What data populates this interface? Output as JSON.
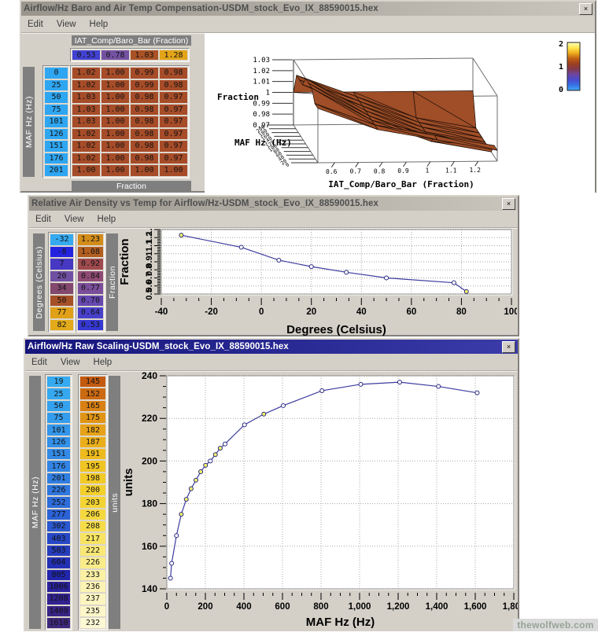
{
  "icons": {
    "close": "×"
  },
  "page": {
    "watermark": "thewolfweb.com"
  },
  "windows": {
    "baro": {
      "title": "Airflow/Hz Baro and Air Temp Compensation-USDM_stock_Evo_IX_88590015.hex",
      "menu": [
        "Edit",
        "View",
        "Help"
      ],
      "table": {
        "col_axis_label": "IAT_Comp/Baro_Bar (Fraction)",
        "row_axis_label": "MAF Hz (Hz)",
        "value_axis_label": "Fraction",
        "col_headers": [
          "0.53",
          "0.78",
          "1.03",
          "1.28"
        ],
        "col_header_colors": [
          "#4242d2",
          "#7452a2",
          "#aa5226",
          "#e2a418"
        ],
        "row_headers": [
          "0",
          "25",
          "50",
          "75",
          "101",
          "126",
          "151",
          "176",
          "201"
        ],
        "row_header_color": "#2ea6f2",
        "cell_color": "#a64c28",
        "cells": [
          [
            "1.02",
            "1.00",
            "0.99",
            "0.98"
          ],
          [
            "1.02",
            "1.00",
            "0.99",
            "0.98"
          ],
          [
            "1.03",
            "1.00",
            "0.98",
            "0.97"
          ],
          [
            "1.03",
            "1.00",
            "0.98",
            "0.97"
          ],
          [
            "1.03",
            "1.00",
            "0.98",
            "0.97"
          ],
          [
            "1.02",
            "1.00",
            "0.98",
            "0.97"
          ],
          [
            "1.02",
            "1.00",
            "0.98",
            "0.97"
          ],
          [
            "1.02",
            "1.00",
            "0.98",
            "0.97"
          ],
          [
            "1.00",
            "1.00",
            "1.00",
            "1.00"
          ]
        ]
      }
    },
    "density": {
      "title": "Relative Air Density vs Temp for Airflow/Hz-USDM_stock_Evo_IX_88590015.hex",
      "menu": [
        "Edit",
        "View",
        "Help"
      ],
      "table": {
        "col1_label": "Degrees (Celsius)",
        "col2_label": "Fraction",
        "col1_values": [
          "-32",
          "-8",
          "7",
          "20",
          "34",
          "50",
          "77",
          "82"
        ],
        "col1_colors": [
          "#35aaf0",
          "#2424e0",
          "#4638c2",
          "#7050a2",
          "#82486e",
          "#a65028",
          "#e0a018",
          "#e2aa1a"
        ],
        "col2_values": [
          "1.23",
          "1.08",
          "0.92",
          "0.84",
          "0.77",
          "0.70",
          "0.64",
          "0.53"
        ],
        "col2_colors": [
          "#d28c1a",
          "#b25e20",
          "#9e4a4e",
          "#8e4a74",
          "#7a4e9a",
          "#6648b0",
          "#4840ca",
          "#3638d2"
        ]
      }
    },
    "raw": {
      "title": "Airflow/Hz Raw Scaling-USDM_stock_Evo_IX_88590015.hex",
      "menu": [
        "Edit",
        "View",
        "Help"
      ],
      "table": {
        "col1_label": "MAF Hz (Hz)",
        "col2_label": "units",
        "col1_values": [
          "19",
          "25",
          "50",
          "75",
          "101",
          "126",
          "151",
          "176",
          "201",
          "226",
          "252",
          "277",
          "302",
          "403",
          "503",
          "604",
          "805",
          "1006",
          "1208",
          "1409",
          "1610"
        ],
        "col1_colors": [
          "#35aaf0",
          "#35a8f0",
          "#34a2ee",
          "#349cec",
          "#3396ea",
          "#3290e8",
          "#328ae6",
          "#3184e4",
          "#307ee2",
          "#2f76de",
          "#2d6cda",
          "#2b62d6",
          "#2a58d0",
          "#2748c6",
          "#253cbc",
          "#2330b4",
          "#2126ac",
          "#2a229c",
          "#322290",
          "#382486",
          "#3e287c"
        ],
        "col2_values": [
          "145",
          "152",
          "165",
          "175",
          "182",
          "187",
          "191",
          "195",
          "198",
          "200",
          "203",
          "206",
          "208",
          "217",
          "222",
          "226",
          "233",
          "236",
          "237",
          "235",
          "232"
        ],
        "col2_colors": [
          "#c25a10",
          "#cc6a12",
          "#d88014",
          "#e09416",
          "#e6a218",
          "#eaae1a",
          "#eeba1e",
          "#f0c422",
          "#f2ca26",
          "#f3d02c",
          "#f4d434",
          "#f5d83e",
          "#f6dc48",
          "#f8e462",
          "#f9e876",
          "#faec8a",
          "#fbf0a4",
          "#fcf3b4",
          "#fcf5c0",
          "#fdf6c8",
          "#fdf8d4"
        ]
      }
    }
  },
  "chart_data": [
    {
      "type": "surface",
      "xlabel": "IAT_Comp/Baro_Bar (Fraction)",
      "ylabel": "MAF Hz (Hz)",
      "zlabel": "Fraction",
      "x": [
        0.53,
        0.78,
        1.03,
        1.28
      ],
      "y": [
        0,
        25,
        50,
        75,
        101,
        126,
        151,
        176,
        201
      ],
      "z": [
        [
          1.02,
          1.0,
          0.99,
          0.98
        ],
        [
          1.02,
          1.0,
          0.99,
          0.98
        ],
        [
          1.03,
          1.0,
          0.98,
          0.97
        ],
        [
          1.03,
          1.0,
          0.98,
          0.97
        ],
        [
          1.03,
          1.0,
          0.98,
          0.97
        ],
        [
          1.02,
          1.0,
          0.98,
          0.97
        ],
        [
          1.02,
          1.0,
          0.98,
          0.97
        ],
        [
          1.02,
          1.0,
          0.98,
          0.97
        ],
        [
          1.0,
          1.0,
          1.0,
          1.0
        ]
      ],
      "zlim": [
        0.97,
        1.03
      ],
      "zticks": [
        "1.03",
        "1.02",
        "1.01",
        "1",
        "0.99",
        "0.98",
        "0.97"
      ],
      "xticks": [
        0.6,
        0.7,
        0.8,
        0.9,
        1,
        1.1,
        1.2
      ],
      "xtick_labels": [
        "0.6",
        "0.7",
        "0.8",
        "0.9",
        "1",
        "1.1",
        "1.2"
      ],
      "yticks": [
        0,
        20,
        40,
        60,
        80,
        100,
        120,
        140,
        160,
        180,
        200
      ],
      "surface_color": "#9f4e28",
      "colorbar": {
        "labels": [
          "2",
          "1",
          "0"
        ],
        "stops": [
          "#ffffbe",
          "#ffe84e",
          "#eeac1e",
          "#c06014",
          "#9c4020",
          "#83384a",
          "#6e46a0",
          "#4a4ace",
          "#3572e6",
          "#41a8f6"
        ]
      }
    },
    {
      "type": "line",
      "xlabel": "Degrees (Celsius)",
      "ylabel": "Fraction",
      "x": [
        -32,
        -8,
        7,
        20,
        34,
        50,
        77,
        82
      ],
      "yvals": [
        1.23,
        1.08,
        0.92,
        0.84,
        0.77,
        0.7,
        0.64,
        0.53
      ],
      "xlim": [
        -40,
        100
      ],
      "ylim": [
        0.5,
        1.3
      ],
      "xticks": [
        -40,
        -20,
        0,
        20,
        40,
        60,
        80,
        100
      ],
      "xtick_labels": [
        "-40",
        "-20",
        "0",
        "20",
        "40",
        "60",
        "80",
        "100"
      ],
      "yticks": [
        0.5,
        0.6,
        0.7,
        0.8,
        0.9,
        1,
        1.1,
        1.2,
        1.3
      ],
      "ytick_labels": [
        "0.5",
        "0.6",
        "0.7",
        "0.8",
        "0.9",
        "1",
        "1.1",
        "1.2",
        "1.3"
      ],
      "line_color": "#3c3c9e",
      "marker_fills": [
        "#f6f66a",
        "#ffffff",
        "#ffffff",
        "#ffffff",
        "#ffffff",
        "#ffffff",
        "#ffffff",
        "#f6f66a"
      ]
    },
    {
      "type": "line",
      "xlabel": "MAF Hz (Hz)",
      "ylabel": "units",
      "x": [
        19,
        25,
        50,
        75,
        101,
        126,
        151,
        176,
        201,
        226,
        252,
        277,
        302,
        403,
        503,
        604,
        805,
        1006,
        1208,
        1409,
        1610
      ],
      "yvals": [
        145,
        152,
        165,
        175,
        182,
        187,
        191,
        195,
        198,
        200,
        203,
        206,
        208,
        217,
        222,
        226,
        233,
        236,
        237,
        235,
        232
      ],
      "xlim": [
        0,
        1800
      ],
      "ylim": [
        140,
        240
      ],
      "xticks": [
        0,
        200,
        400,
        600,
        800,
        1000,
        1200,
        1400,
        1600,
        1800
      ],
      "xtick_labels": [
        "0",
        "200",
        "400",
        "600",
        "800",
        "1,000",
        "1,200",
        "1,400",
        "1,600",
        "1,800"
      ],
      "yticks": [
        140,
        160,
        180,
        200,
        220,
        240
      ],
      "ytick_labels": [
        "140",
        "160",
        "180",
        "200",
        "220",
        "240"
      ],
      "line_color": "#3c3c9e",
      "marker_fills": [
        "#ffffff",
        "#ffffff",
        "#ffffff",
        "#f6f66a",
        "#f6f66a",
        "#f6f66a",
        "#f6f66a",
        "#f6f66a",
        "#f6f66a",
        "#ffffff",
        "#f6f66a",
        "#f6f66a",
        "#ffffff",
        "#ffffff",
        "#f6f66a",
        "#ffffff",
        "#ffffff",
        "#ffffff",
        "#ffffff",
        "#ffffff",
        "#ffffff"
      ]
    }
  ]
}
